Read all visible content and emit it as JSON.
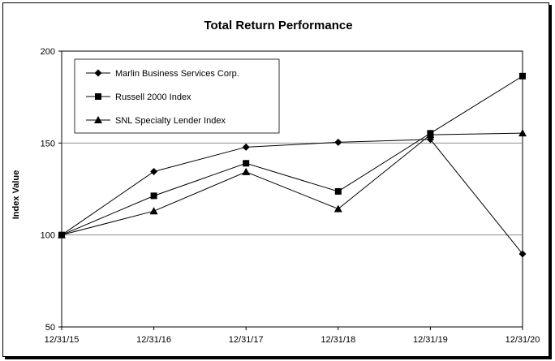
{
  "chart_data": {
    "type": "line",
    "title": "Total Return Performance",
    "xlabel": "",
    "ylabel": "Index Value",
    "categories": [
      "12/31/15",
      "12/31/16",
      "12/31/17",
      "12/31/18",
      "12/31/19",
      "12/31/20"
    ],
    "ylim": [
      50,
      200
    ],
    "yticks": [
      50,
      100,
      150,
      200
    ],
    "gridlines": [
      100,
      150
    ],
    "legend_position": "top-left",
    "series": [
      {
        "name": "Marlin Business Services Corp.",
        "marker": "diamond",
        "values": [
          100,
          134.5,
          147.8,
          150.4,
          152.0,
          89.7
        ]
      },
      {
        "name": "Russell 2000 Index",
        "marker": "square",
        "values": [
          100,
          121.3,
          139.0,
          123.7,
          155.3,
          186.4
        ]
      },
      {
        "name": "SNL Specialty Lender Index",
        "marker": "triangle",
        "values": [
          100,
          113.0,
          134.3,
          114.2,
          154.5,
          155.4
        ]
      }
    ]
  }
}
